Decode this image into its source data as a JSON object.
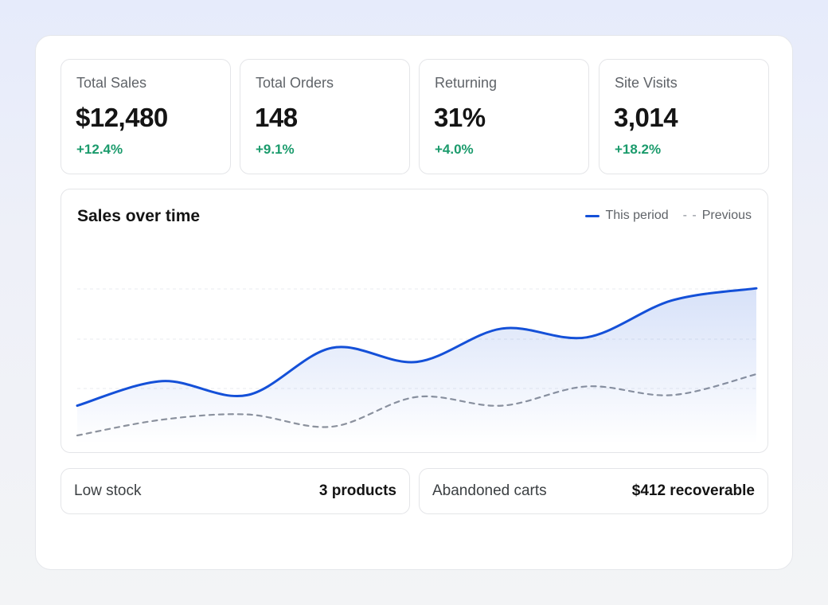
{
  "stats": [
    {
      "label": "Total Sales",
      "value": "$12,480",
      "delta": "+12.4%"
    },
    {
      "label": "Total Orders",
      "value": "148",
      "delta": "+9.1%"
    },
    {
      "label": "Returning",
      "value": "31%",
      "delta": "+4.0%"
    },
    {
      "label": "Site Visits",
      "value": "3,014",
      "delta": "+18.2%"
    }
  ],
  "chart": {
    "title": "Sales over time",
    "legend": {
      "current": "This period",
      "previous": "Previous"
    }
  },
  "chart_data": {
    "type": "line",
    "title": "Sales over time",
    "x": [
      0,
      1,
      2,
      3,
      4,
      5,
      6,
      7,
      8
    ],
    "ylim": [
      0,
      100
    ],
    "grid": true,
    "legend_placement": "top-right",
    "series": [
      {
        "name": "This period",
        "color": "#1450d8",
        "style": "solid",
        "area_fill": true,
        "values": [
          22,
          36,
          28,
          55,
          47,
          66,
          61,
          82,
          89
        ]
      },
      {
        "name": "Previous",
        "color": "#8e939c",
        "style": "dashed",
        "values": [
          5,
          14,
          17,
          10,
          27,
          22,
          33,
          28,
          40
        ]
      }
    ]
  },
  "bottom": [
    {
      "label": "Low stock",
      "value": "3 products"
    },
    {
      "label": "Abandoned carts",
      "value": "$412 recoverable"
    }
  ],
  "colors": {
    "accent": "#1450d8",
    "positive": "#1b9b6c",
    "muted_line": "#8e939c"
  }
}
